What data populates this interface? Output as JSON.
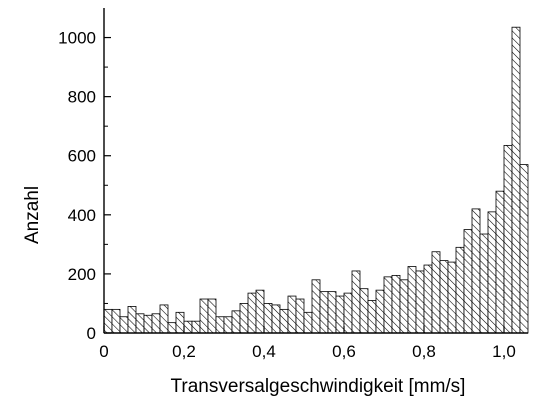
{
  "chart_data": {
    "type": "bar",
    "xlabel": "Transversalgeschwindigkeit [mm/s]",
    "ylabel": "Anzahl",
    "xlim": [
      0,
      1.06
    ],
    "ylim": [
      0,
      1100
    ],
    "bin_width": 0.02,
    "x_ticks": [
      {
        "value": 0,
        "label": "0"
      },
      {
        "value": 0.2,
        "label": "0,2"
      },
      {
        "value": 0.4,
        "label": "0,4"
      },
      {
        "value": 0.6,
        "label": "0,6"
      },
      {
        "value": 0.8,
        "label": "0,8"
      },
      {
        "value": 1.0,
        "label": "1,0"
      }
    ],
    "y_ticks": [
      {
        "value": 0,
        "label": "0"
      },
      {
        "value": 200,
        "label": "200"
      },
      {
        "value": 400,
        "label": "400"
      },
      {
        "value": 600,
        "label": "600"
      },
      {
        "value": 800,
        "label": "800"
      },
      {
        "value": 1000,
        "label": "1000"
      }
    ],
    "bin_starts": [
      0.0,
      0.02,
      0.04,
      0.06,
      0.08,
      0.1,
      0.12,
      0.14,
      0.16,
      0.18,
      0.2,
      0.22,
      0.24,
      0.26,
      0.28,
      0.3,
      0.32,
      0.34,
      0.36,
      0.38,
      0.4,
      0.42,
      0.44,
      0.46,
      0.48,
      0.5,
      0.52,
      0.54,
      0.56,
      0.58,
      0.6,
      0.62,
      0.64,
      0.66,
      0.68,
      0.7,
      0.72,
      0.74,
      0.76,
      0.78,
      0.8,
      0.82,
      0.84,
      0.86,
      0.88,
      0.9,
      0.92,
      0.94,
      0.96,
      0.98,
      1.0,
      1.02,
      1.04
    ],
    "values": [
      80,
      80,
      55,
      90,
      65,
      60,
      65,
      95,
      35,
      70,
      40,
      40,
      115,
      115,
      55,
      55,
      75,
      100,
      135,
      145,
      100,
      95,
      80,
      125,
      115,
      70,
      180,
      140,
      140,
      125,
      135,
      210,
      150,
      110,
      145,
      190,
      195,
      180,
      225,
      210,
      230,
      275,
      245,
      240,
      290,
      350,
      420,
      335,
      410,
      480,
      635,
      1035,
      570
    ]
  }
}
